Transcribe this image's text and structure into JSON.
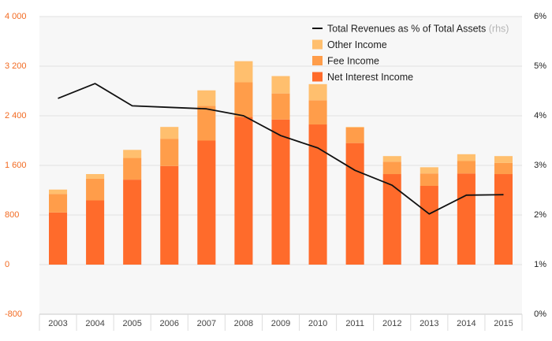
{
  "chart_data": {
    "type": "bar",
    "stacked": true,
    "categories": [
      "2003",
      "2004",
      "2005",
      "2006",
      "2007",
      "2008",
      "2009",
      "2010",
      "2011",
      "2012",
      "2013",
      "2014",
      "2015"
    ],
    "series": [
      {
        "name": "Net Interest Income",
        "color": "#ff6b2b",
        "axis": "left",
        "values": [
          840,
          1035,
          1370,
          1590,
          2000,
          2380,
          2340,
          2260,
          1960,
          1460,
          1270,
          1470,
          1460
        ]
      },
      {
        "name": "Fee Income",
        "color": "#ff9d4a",
        "axis": "left",
        "values": [
          300,
          350,
          350,
          440,
          560,
          560,
          420,
          390,
          250,
          200,
          200,
          200,
          180
        ]
      },
      {
        "name": "Other Income",
        "color": "#ffbf6e",
        "axis": "left",
        "values": [
          70,
          75,
          130,
          190,
          250,
          340,
          280,
          260,
          10,
          90,
          100,
          110,
          110
        ]
      },
      {
        "name": "Total Revenues as % of Total Assets",
        "name_suffix": "(rhs)",
        "type": "line",
        "color": "#111111",
        "axis": "right",
        "values": [
          4.35,
          4.65,
          4.2,
          4.17,
          4.14,
          4.0,
          3.6,
          3.35,
          2.9,
          2.6,
          2.02,
          2.4,
          2.41
        ]
      }
    ],
    "y_left": {
      "ticks": [
        "4 000",
        "3 200",
        "2 400",
        "1 600",
        "800",
        "0",
        "-800"
      ],
      "ylim": [
        -800,
        4000
      ]
    },
    "y_right": {
      "ticks": [
        "6%",
        "5%",
        "4%",
        "3%",
        "2%",
        "1%",
        "0%"
      ],
      "ylim": [
        0,
        6
      ]
    },
    "legend": {
      "position": "top-right",
      "order": [
        3,
        2,
        1,
        0
      ]
    },
    "grid": true
  }
}
